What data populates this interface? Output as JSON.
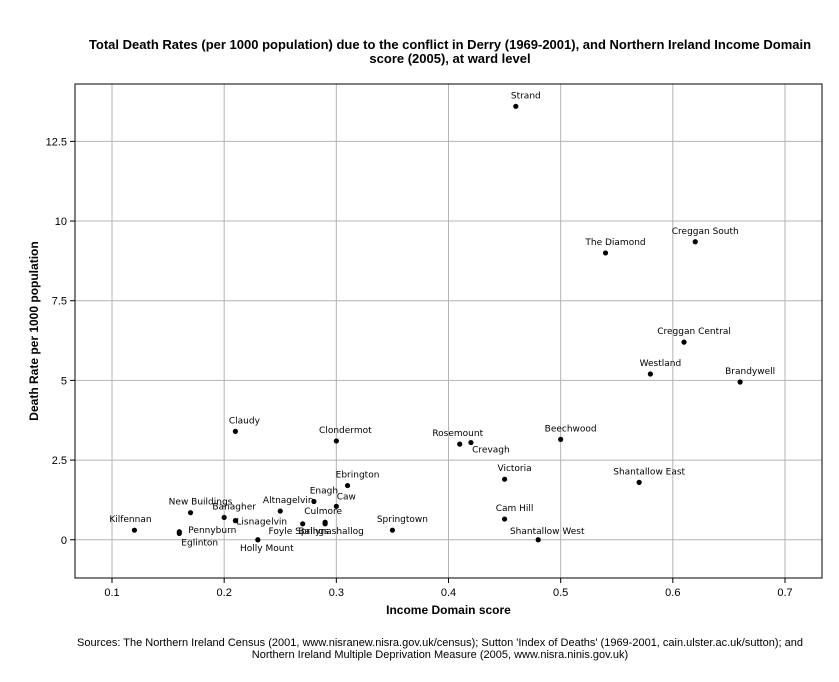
{
  "chart_data": {
    "type": "scatter",
    "title_lines": [
      "Total Death Rates (per 1000 population) due to the conflict in Derry (1969-2001), and Northern Ireland Income Domain",
      "score (2005), at ward level"
    ],
    "xlabel": "Income Domain score",
    "ylabel": "Death Rate per 1000 population",
    "xlim": [
      0.067,
      0.733
    ],
    "ylim": [
      -1.2,
      14.3
    ],
    "x_ticks": [
      0.1,
      0.2,
      0.3,
      0.4,
      0.5,
      0.6,
      0.7
    ],
    "x_tick_labels": [
      "0.1",
      "0.2",
      "0.3",
      "0.4",
      "0.5",
      "0.6",
      "0.7"
    ],
    "y_ticks": [
      0,
      2.5,
      5,
      7.5,
      10,
      12.5
    ],
    "y_tick_labels": [
      "0",
      "2.5",
      "5",
      "7.5",
      "10",
      "12.5"
    ],
    "grid": true,
    "points": [
      {
        "label": "Strand",
        "x": 0.46,
        "y": 13.6
      },
      {
        "label": "Creggan South",
        "x": 0.62,
        "y": 9.35
      },
      {
        "label": "The Diamond",
        "x": 0.54,
        "y": 9.0
      },
      {
        "label": "Creggan Central",
        "x": 0.61,
        "y": 6.2
      },
      {
        "label": "Westland",
        "x": 0.58,
        "y": 5.2
      },
      {
        "label": "Brandywell",
        "x": 0.66,
        "y": 4.95
      },
      {
        "label": "Claudy",
        "x": 0.21,
        "y": 3.4
      },
      {
        "label": "Clondermot",
        "x": 0.3,
        "y": 3.1
      },
      {
        "label": "Rosemount",
        "x": 0.41,
        "y": 3.0
      },
      {
        "label": "Crevagh",
        "x": 0.42,
        "y": 3.05
      },
      {
        "label": "Beechwood",
        "x": 0.5,
        "y": 3.15
      },
      {
        "label": "Victoria",
        "x": 0.45,
        "y": 1.9
      },
      {
        "label": "Shantallow East",
        "x": 0.57,
        "y": 1.8
      },
      {
        "label": "Ebrington",
        "x": 0.31,
        "y": 1.7
      },
      {
        "label": "Enagh",
        "x": 0.28,
        "y": 1.2
      },
      {
        "label": "Caw",
        "x": 0.3,
        "y": 1.05
      },
      {
        "label": "Altnagelvin",
        "x": 0.25,
        "y": 0.9
      },
      {
        "label": "New Buildings",
        "x": 0.17,
        "y": 0.85
      },
      {
        "label": "Banagher",
        "x": 0.2,
        "y": 0.7
      },
      {
        "label": "Lisnagelvin",
        "x": 0.21,
        "y": 0.6
      },
      {
        "label": "Culmore",
        "x": 0.29,
        "y": 0.55
      },
      {
        "label": "Foyle Springs",
        "x": 0.27,
        "y": 0.5
      },
      {
        "label": "Ballynashallog",
        "x": 0.29,
        "y": 0.5
      },
      {
        "label": "Cam Hill",
        "x": 0.45,
        "y": 0.65
      },
      {
        "label": "Kilfennan",
        "x": 0.12,
        "y": 0.3
      },
      {
        "label": "Springtown",
        "x": 0.35,
        "y": 0.3
      },
      {
        "label": "Pennyburn",
        "x": 0.16,
        "y": 0.25
      },
      {
        "label": "Eglinton",
        "x": 0.16,
        "y": 0.2
      },
      {
        "label": "Holly Mount",
        "x": 0.23,
        "y": 0.0
      },
      {
        "label": "Shantallow West",
        "x": 0.48,
        "y": 0.0
      }
    ]
  },
  "source_lines": [
    "Sources: The Northern Ireland Census (2001, www.nisranew.nisra.gov.uk/census); Sutton 'Index of Deaths' (1969-2001, cain.ulster.ac.uk/sutton); and",
    "Northern Ireland Multiple Deprivation Measure (2005, www.nisra.ninis.gov.uk)"
  ]
}
